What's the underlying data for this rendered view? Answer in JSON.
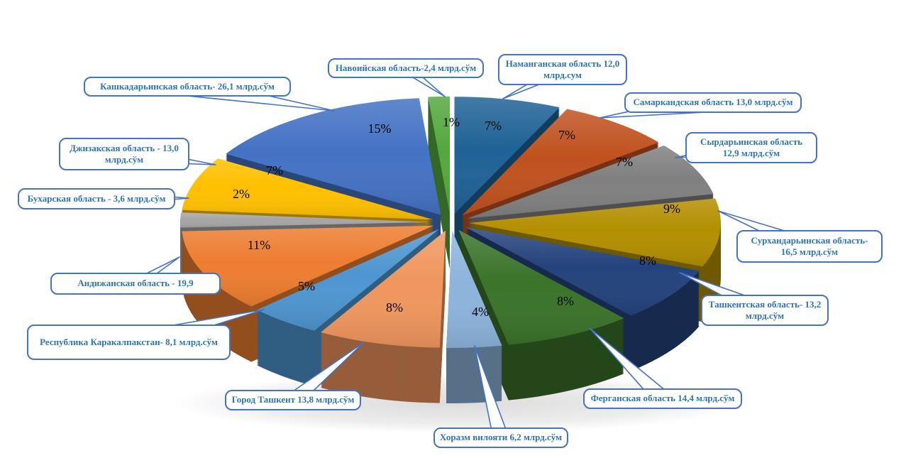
{
  "style": {
    "background": "#ffffff",
    "callout_border_color": "#4472C4",
    "callout_text_color": "#2E74B5",
    "percent_label_color": "#000000"
  },
  "chart_data": {
    "type": "pie",
    "variant": "3d-exploded",
    "title": "",
    "unit": "млрд.сўм",
    "direction": "clockwise",
    "start_angle_deg": 0,
    "legend": "none",
    "slices": [
      {
        "id": "namangan",
        "region": "Наманганская область",
        "value": 12.0,
        "value_text": "12,0",
        "percent": "7%",
        "callout": "Наманганская область 12,0 млрд.сум",
        "color": "#1F6296"
      },
      {
        "id": "samarkand",
        "region": "Самаркандская область",
        "value": 13.0,
        "value_text": "13,0",
        "percent": "7%",
        "callout": "Самаркандская область 13,0 млрд.сўм",
        "color": "#C0511F"
      },
      {
        "id": "sirdarya",
        "region": "Сырдарьинская область",
        "value": 12.9,
        "value_text": "12,9",
        "percent": "7%",
        "callout": "Сырдарьинская область 12,9 млрд.сўм",
        "color": "#808080"
      },
      {
        "id": "surkhandarya",
        "region": "Сурхандарьинская область",
        "value": 16.5,
        "value_text": "16,5",
        "percent": "9%",
        "callout": "Сурхандарьинская область- 16,5 млрд.сўм",
        "color": "#B38F00"
      },
      {
        "id": "tashkent-region",
        "region": "Ташкентская область",
        "value": 13.2,
        "value_text": "13,2",
        "percent": "8%",
        "callout": "Ташкентская область- 13,2 млрд.сўм",
        "color": "#24437C"
      },
      {
        "id": "fergana",
        "region": "Ферганская область",
        "value": 14.4,
        "value_text": "14,4",
        "percent": "8%",
        "callout": "Ферганская область 14,4 млрд.сўм",
        "color": "#3A732A"
      },
      {
        "id": "khorazm",
        "region": "Хоразм вилояти",
        "value": 6.2,
        "value_text": "6,2",
        "percent": "4%",
        "callout": "Хоразм вилояти 6,2 млрд.сўм",
        "color": "#8DB4DC"
      },
      {
        "id": "tashkent-city",
        "region": "Город Ташкент",
        "value": 13.8,
        "value_text": "13,8",
        "percent": "8%",
        "callout": "Город Ташкент 13,8 млрд.сўм",
        "color": "#F0965E"
      },
      {
        "id": "karakalpak",
        "region": "Республика Каракалпакстан",
        "value": 8.1,
        "value_text": "8,1",
        "percent": "5%",
        "callout": "Республика Каракалпакстан- 8,1 млрд.сўм",
        "color": "#4E96D1"
      },
      {
        "id": "andijan",
        "region": "Андижанская область",
        "value": 19.9,
        "value_text": "19,9",
        "percent": "11%",
        "callout": "Андижанская область - 19,9",
        "color": "#ED7D31"
      },
      {
        "id": "bukhara",
        "region": "Бухарская область",
        "value": 3.6,
        "value_text": "3,6",
        "percent": "2%",
        "callout": "Бухарская область - 3,6 млрд.сўм",
        "color": "#A6A6A6"
      },
      {
        "id": "jizzakh",
        "region": "Джизакская область",
        "value": 13.0,
        "value_text": "13,0",
        "percent": "7%",
        "callout": "Джизакская область - 13,0 млрд.сўм",
        "color": "#FFC000"
      },
      {
        "id": "kashkadarya",
        "region": "Кашкадарьинская область",
        "value": 26.1,
        "value_text": "26,1",
        "percent": "15%",
        "callout": "Кашкадарьинская область- 26,1 млрд.сўм",
        "color": "#4472C4"
      },
      {
        "id": "navoiy",
        "region": "Навоийская область",
        "value": 2.4,
        "value_text": "2,4",
        "percent": "1%",
        "callout": "Навоийская область-2,4 млрд.сўм",
        "color": "#54A83E"
      }
    ]
  }
}
